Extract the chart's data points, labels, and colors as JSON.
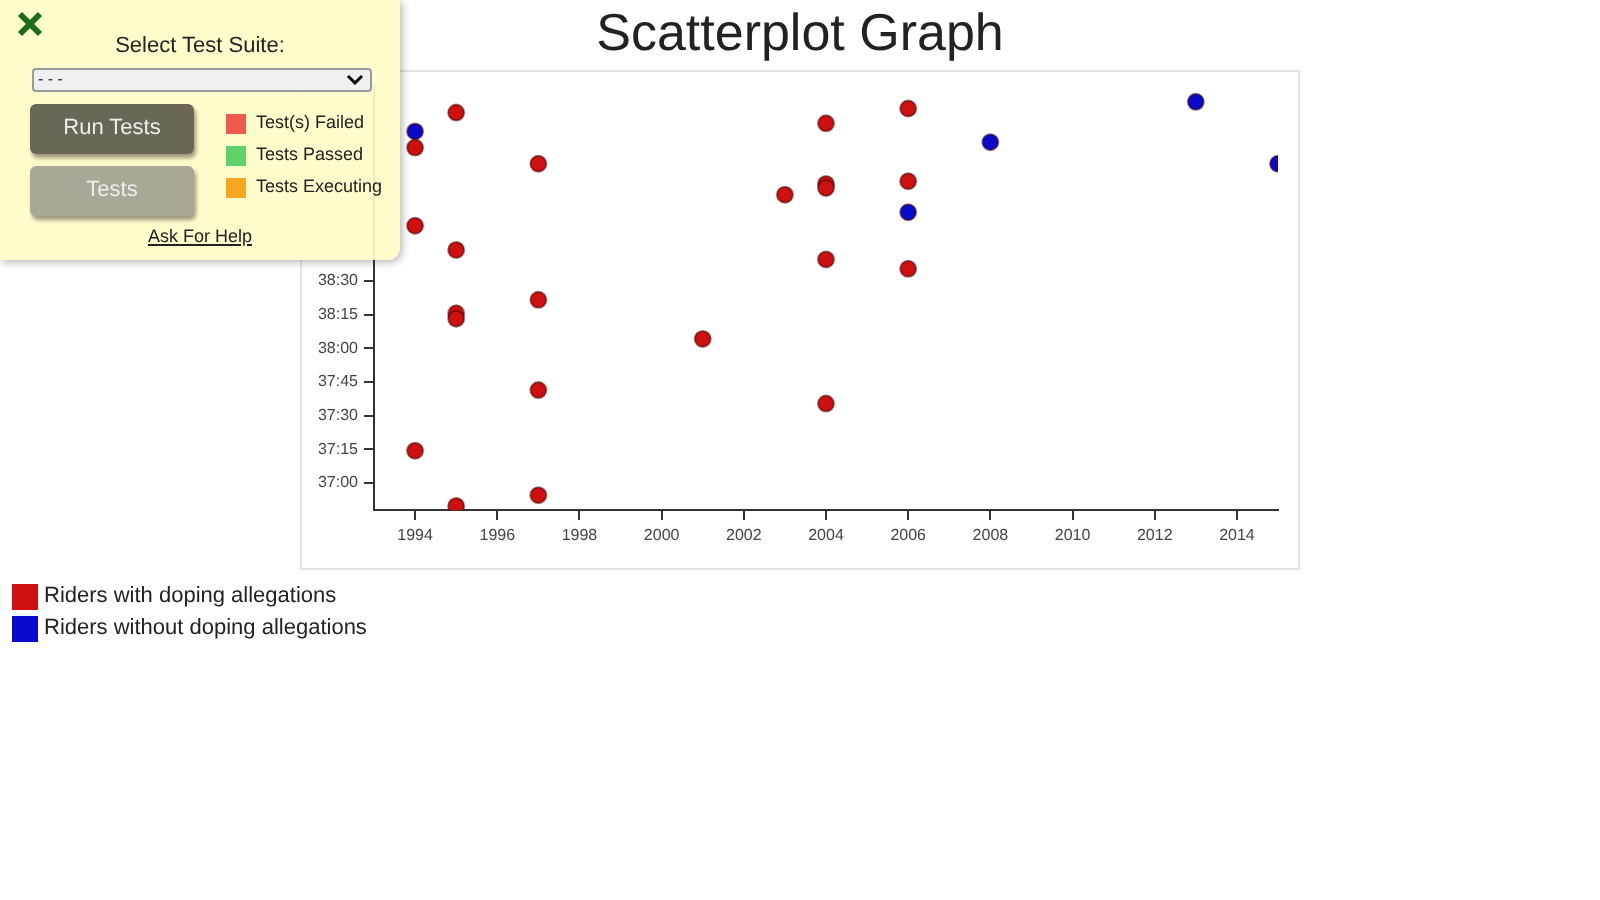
{
  "chart_data": {
    "type": "scatter",
    "title": "Scatterplot Graph",
    "xlim": [
      1993,
      2015
    ],
    "xticks": [
      1994,
      1996,
      1998,
      2000,
      2002,
      2004,
      2006,
      2008,
      2010,
      2012,
      2014
    ],
    "ylim": [
      36.8,
      39.95
    ],
    "yticks": [
      {
        "value": 37,
        "label": "37:00"
      },
      {
        "value": 37.25,
        "label": "37:15"
      },
      {
        "value": 37.5,
        "label": "37:30"
      },
      {
        "value": 37.75,
        "label": "37:45"
      },
      {
        "value": 38,
        "label": "38:00"
      },
      {
        "value": 38.25,
        "label": "38:15"
      },
      {
        "value": 38.5,
        "label": "38:30"
      }
    ],
    "marker": "circle",
    "legend": "bottom left",
    "series": [
      {
        "name": "Riders with doping allegations",
        "color": "#d01010",
        "x": [
          1995,
          2004,
          2006,
          1994,
          1997,
          2003,
          2004,
          2004,
          2006,
          1994,
          1995,
          2004,
          2006,
          1997,
          1995,
          1995,
          2001,
          1997,
          2004,
          1994,
          1997,
          1995
        ],
        "values": [
          39.75,
          39.67,
          39.78,
          39.49,
          39.37,
          39.14,
          39.22,
          39.19,
          39.24,
          38.91,
          38.73,
          38.66,
          38.59,
          38.36,
          38.26,
          38.22,
          38.07,
          37.69,
          37.59,
          37.24,
          36.91,
          36.83
        ]
      },
      {
        "name": "Riders without doping allegations",
        "color": "#0a0acc",
        "x": [
          1994,
          2013,
          2008,
          2015,
          2006
        ],
        "values": [
          39.61,
          39.83,
          39.53,
          39.37,
          39.01
        ]
      }
    ],
    "annotations": [
      "Select Test Suite:",
      "- - -",
      "Run Tests",
      "Tests",
      "Test(s) Failed",
      "Tests Passed",
      "Tests Executing",
      "Ask For Help"
    ]
  }
}
